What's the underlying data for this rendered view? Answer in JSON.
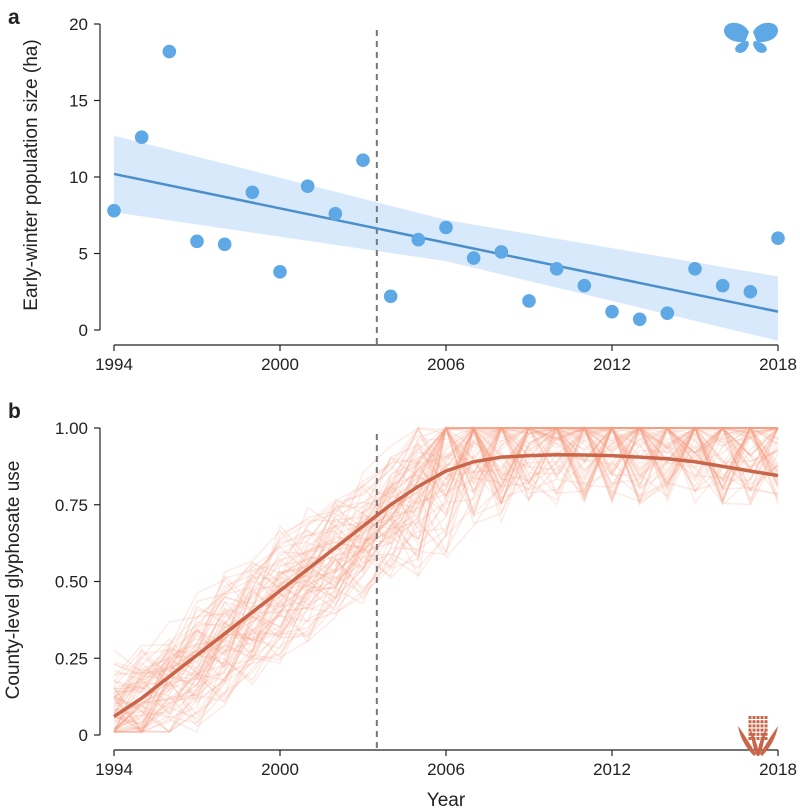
{
  "colors": {
    "butterfly": "#5fa8e6",
    "trend_a": "#4a8fcc",
    "band_a": "#d7e9fb",
    "glyphosate_thin": "#f6a184",
    "glyphosate_trend": "#c9664a",
    "corn": "#c9664a",
    "divider": "#777777"
  },
  "icons": {
    "panel_a": "butterfly-icon",
    "panel_b": "corn-icon"
  },
  "chart_data": [
    {
      "type": "scatter",
      "panel": "a",
      "xlabel": "",
      "ylabel": "Early-winter population size (ha)",
      "xlim": [
        1994,
        2018
      ],
      "ylim": [
        0,
        20
      ],
      "xticks": [
        1994,
        2000,
        2006,
        2012,
        2018
      ],
      "yticks": [
        0,
        5,
        10,
        15,
        20
      ],
      "x": [
        1994,
        1995,
        1996,
        1997,
        1998,
        1999,
        2000,
        2001,
        2002,
        2003,
        2004,
        2005,
        2006,
        2007,
        2008,
        2009,
        2010,
        2011,
        2012,
        2013,
        2014,
        2015,
        2016,
        2017,
        2018
      ],
      "y": [
        7.8,
        12.6,
        18.2,
        5.8,
        5.6,
        9.0,
        3.8,
        9.4,
        7.6,
        11.1,
        2.2,
        5.9,
        6.7,
        4.7,
        5.1,
        1.9,
        4.0,
        2.9,
        1.2,
        0.7,
        1.1,
        4.0,
        2.9,
        2.5,
        6.0
      ],
      "trend": {
        "x": [
          1994,
          2018
        ],
        "y": [
          10.2,
          1.2
        ]
      },
      "confidence_band": {
        "x": [
          1994,
          2006,
          2018
        ],
        "lower": [
          7.7,
          4.5,
          -0.7
        ],
        "upper": [
          12.7,
          7.2,
          3.5
        ]
      },
      "vline_x": 2003.5
    },
    {
      "type": "line",
      "panel": "b",
      "xlabel": "Year",
      "ylabel": "County-level glyphosate use",
      "xlim": [
        1994,
        2018
      ],
      "ylim": [
        0,
        1
      ],
      "xticks": [
        1994,
        2000,
        2006,
        2012,
        2018
      ],
      "yticks": [
        "0",
        "0.25",
        "0.50",
        "0.75",
        "1.00"
      ],
      "trend": {
        "x": [
          1994,
          1995,
          1996,
          1997,
          1998,
          1999,
          2000,
          2001,
          2002,
          2003,
          2004,
          2005,
          2006,
          2007,
          2008,
          2009,
          2010,
          2011,
          2012,
          2013,
          2014,
          2015,
          2016,
          2017,
          2018
        ],
        "y": [
          0.06,
          0.12,
          0.19,
          0.26,
          0.33,
          0.4,
          0.47,
          0.54,
          0.61,
          0.68,
          0.75,
          0.81,
          0.86,
          0.89,
          0.905,
          0.91,
          0.913,
          0.912,
          0.91,
          0.905,
          0.9,
          0.89,
          0.875,
          0.86,
          0.845
        ]
      },
      "county_lines": {
        "count": 80,
        "seed": 7
      },
      "vline_x": 2003.5
    }
  ]
}
